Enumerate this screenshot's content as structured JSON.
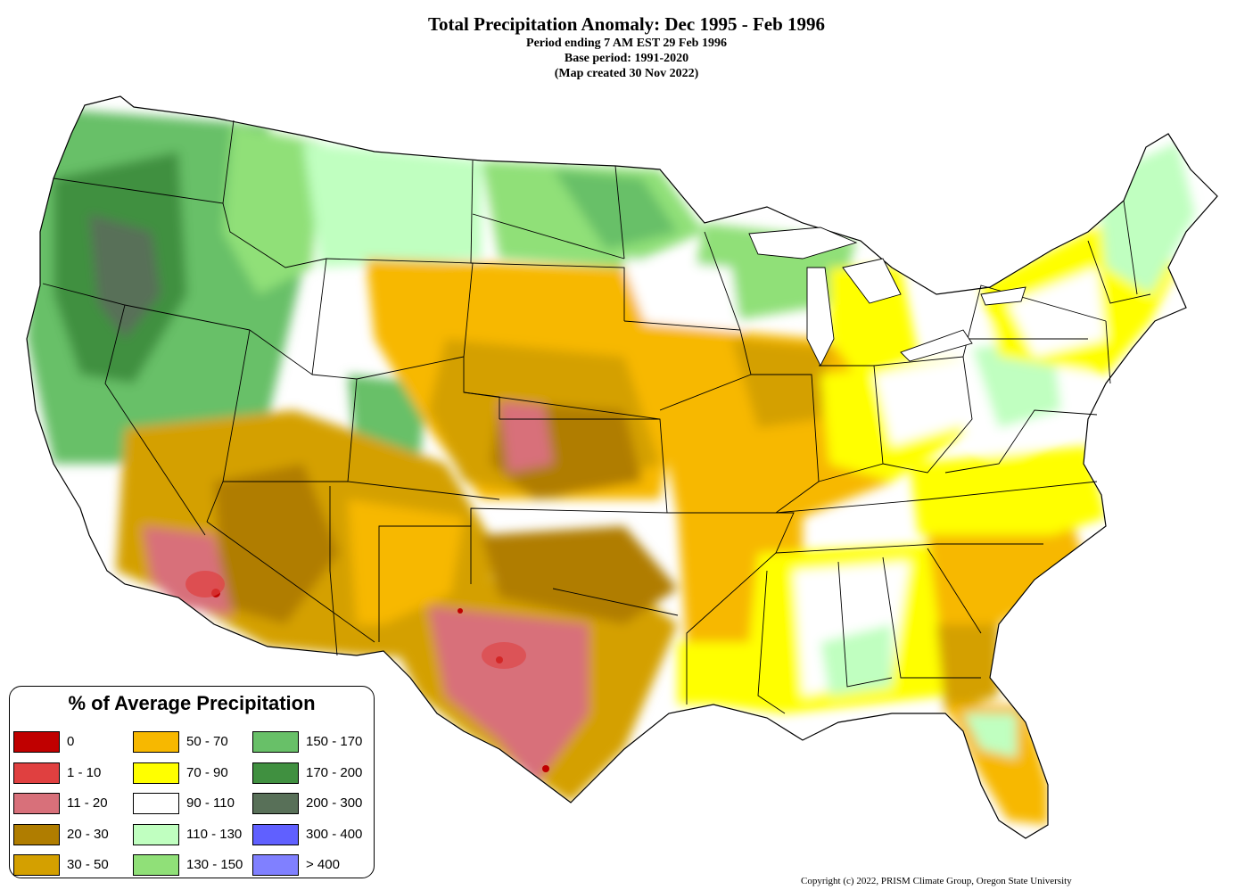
{
  "title": {
    "main": "Total Precipitation Anomaly: Dec 1995 - Feb 1996",
    "line2": "Period ending 7 AM EST 29 Feb 1996",
    "line3": "Base period: 1991-2020",
    "line4": "(Map created 30 Nov 2022)"
  },
  "legend": {
    "title": "% of Average Precipitation",
    "items": [
      {
        "label": "0",
        "color": "#c00000"
      },
      {
        "label": "1 - 10",
        "color": "#e04040"
      },
      {
        "label": "11 - 20",
        "color": "#d8707a"
      },
      {
        "label": "20 - 30",
        "color": "#b07d00"
      },
      {
        "label": "30 - 50",
        "color": "#d4a000"
      },
      {
        "label": "50 - 70",
        "color": "#f7b800"
      },
      {
        "label": "70 - 90",
        "color": "#ffff00"
      },
      {
        "label": "90 - 110",
        "color": "#ffffff"
      },
      {
        "label": "110 - 130",
        "color": "#c0ffc0"
      },
      {
        "label": "130 - 150",
        "color": "#90e078"
      },
      {
        "label": "150 - 170",
        "color": "#68c068"
      },
      {
        "label": "170 - 200",
        "color": "#409040"
      },
      {
        "label": "200 - 300",
        "color": "#587058"
      },
      {
        "label": "300 - 400",
        "color": "#6060ff"
      },
      {
        "label": "> 400",
        "color": "#8080ff"
      }
    ]
  },
  "copyright": "Copyright (c) 2022, PRISM Climate Group, Oregon State University"
}
